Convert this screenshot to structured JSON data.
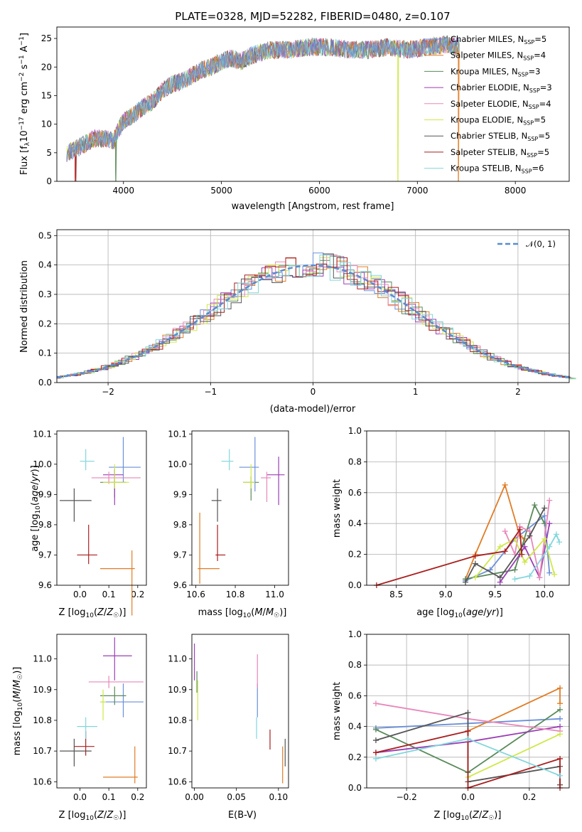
{
  "title": "PLATE=0328, MJD=52282, FIBERID=0480, z=0.107",
  "colors": [
    "#6a8fd8",
    "#e07c26",
    "#5a8a5a",
    "#9b3fb5",
    "#e888bb",
    "#cfe84a",
    "#555555",
    "#a81f1f",
    "#82d6dc"
  ],
  "chart_data": [
    {
      "id": "spectrum",
      "type": "line",
      "title": "PLATE=0328, MJD=52282, FIBERID=0480, z=0.107",
      "xlabel": "wavelength [Angstrom, rest frame]",
      "ylabel": "Flux [f_λ 10⁻¹⁷ erg cm⁻² s⁻¹ A⁻¹]",
      "xlim": [
        3320,
        8550
      ],
      "ylim": [
        0,
        27
      ],
      "xticks": [
        "4000",
        "5000",
        "6000",
        "7000",
        "8000"
      ],
      "yticks": [
        "0",
        "5",
        "10",
        "15",
        "20",
        "25"
      ],
      "legend_position": "right",
      "continuum": {
        "x": [
          3420,
          3500,
          3600,
          3700,
          3800,
          3900,
          3950,
          4000,
          4100,
          4200,
          4300,
          4400,
          4500,
          4600,
          4700,
          4800,
          4900,
          5000,
          5100,
          5200,
          5300,
          5500,
          5700,
          5900,
          6100,
          6300,
          6500,
          6700,
          6900,
          7100,
          7300,
          7420
        ],
        "y": [
          5,
          5.5,
          6.5,
          7.5,
          7.5,
          7,
          9,
          10.5,
          11.5,
          13,
          14,
          16,
          17,
          17.5,
          18.5,
          19.5,
          20,
          21,
          21.5,
          21,
          22,
          23,
          23,
          23.5,
          23.5,
          23,
          23,
          23.5,
          23,
          23.5,
          24,
          23.5
        ]
      },
      "series": [
        {
          "name": "Chabrier MILES, N_SSP=5",
          "label": "Chabrier MILES, N",
          "sub": "SSP",
          "suffix": "=5"
        },
        {
          "name": "Salpeter MILES, N_SSP=4",
          "label": "Salpeter MILES, N",
          "sub": "SSP",
          "suffix": "=4"
        },
        {
          "name": "Kroupa MILES, N_SSP=3",
          "label": "Kroupa MILES, N",
          "sub": "SSP",
          "suffix": "=3"
        },
        {
          "name": "Chabrier ELODIE, N_SSP=3",
          "label": "Chabrier ELODIE, N",
          "sub": "SSP",
          "suffix": "=3"
        },
        {
          "name": "Salpeter ELODIE, N_SSP=4",
          "label": "Salpeter ELODIE, N",
          "sub": "SSP",
          "suffix": "=4"
        },
        {
          "name": "Kroupa ELODIE, N_SSP=5",
          "label": "Kroupa ELODIE, N",
          "sub": "SSP",
          "suffix": "=5"
        },
        {
          "name": "Chabrier STELIB, N_SSP=5",
          "label": "Chabrier STELIB, N",
          "sub": "SSP",
          "suffix": "=5"
        },
        {
          "name": "Salpeter STELIB, N_SSP=5",
          "label": "Salpeter STELIB, N",
          "sub": "SSP",
          "suffix": "=5"
        },
        {
          "name": "Kroupa STELIB, N_SSP=6",
          "label": "Kroupa STELIB, N",
          "sub": "SSP",
          "suffix": "=6"
        }
      ]
    },
    {
      "id": "residuals",
      "type": "line",
      "xlabel": "(data-model)/error",
      "ylabel": "Normed distribution",
      "xlim": [
        -2.5,
        2.5
      ],
      "ylim": [
        0,
        0.52
      ],
      "xticks": [
        "−2",
        "−1",
        "0",
        "1",
        "2"
      ],
      "yticks": [
        "0.0",
        "0.1",
        "0.2",
        "0.3",
        "0.4",
        "0.5"
      ],
      "grid": true,
      "legend": "𝒩(0, 1)",
      "legend_position": "top-right",
      "gaussian": {
        "mean": 0,
        "sigma": 1
      }
    },
    {
      "id": "age_vs_Z",
      "type": "scatter",
      "xlabel": "Z [log₁₀(Z/Z☉)]",
      "ylabel": "age  [log₁₀(age/yr)]",
      "xlim": [
        -0.08,
        0.23
      ],
      "ylim": [
        9.6,
        10.11
      ],
      "xticks": [
        "0.0",
        "0.1",
        "0.2"
      ],
      "yticks": [
        "9.6",
        "9.7",
        "9.8",
        "9.9",
        "10.0",
        "10.1"
      ],
      "points": [
        {
          "x": 0.15,
          "y": 9.99,
          "xerr": [
            0.05,
            0.06
          ],
          "yerr": [
            0.05,
            0.1
          ]
        },
        {
          "x": 0.18,
          "y": 9.655,
          "xerr": [
            0.11,
            0.01
          ],
          "yerr": [
            0.155,
            0.06
          ]
        },
        {
          "x": 0.12,
          "y": 9.94,
          "xerr": [
            0.05,
            0.04
          ],
          "yerr": [
            0.05,
            0.04
          ]
        },
        {
          "x": 0.12,
          "y": 9.965,
          "xerr": [
            0.04,
            0.03
          ],
          "yerr": [
            0.1,
            0.02
          ]
        },
        {
          "x": 0.1,
          "y": 9.955,
          "xerr": [
            0.06,
            0.11
          ],
          "yerr": [
            0.02,
            0.02
          ]
        },
        {
          "x": 0.12,
          "y": 9.94,
          "xerr": [
            0.04,
            0.05
          ],
          "yerr": [
            0.02,
            0.06
          ]
        },
        {
          "x": -0.02,
          "y": 9.88,
          "xerr": [
            0.05,
            0.06
          ],
          "yerr": [
            0.07,
            0.04
          ]
        },
        {
          "x": 0.03,
          "y": 9.7,
          "xerr": [
            0.04,
            0.03
          ],
          "yerr": [
            0.03,
            0.1
          ]
        },
        {
          "x": 0.02,
          "y": 10.01,
          "xerr": [
            0.02,
            0.03
          ],
          "yerr": [
            0.03,
            0.04
          ]
        }
      ]
    },
    {
      "id": "age_vs_mass",
      "type": "scatter",
      "xlabel": "mass [log₁₀(M/M☉)]",
      "ylabel": "",
      "xlim": [
        10.58,
        11.07
      ],
      "ylim": [
        9.6,
        10.11
      ],
      "xticks": [
        "10.6",
        "10.8",
        "11.0"
      ],
      "yticks": [
        "9.6",
        "9.7",
        "9.8",
        "9.9",
        "10.0",
        "10.1"
      ],
      "points": [
        {
          "x": 10.9,
          "y": 9.99,
          "xerr": [
            0.08,
            0.02
          ],
          "yerr": [
            0.08,
            0.1
          ]
        },
        {
          "x": 10.62,
          "y": 9.655,
          "xerr": [
            0.01,
            0.1
          ],
          "yerr": [
            0.05,
            0.185
          ]
        },
        {
          "x": 10.88,
          "y": 9.94,
          "xerr": [
            0.04,
            0.04
          ],
          "yerr": [
            0.06,
            0.02
          ]
        },
        {
          "x": 11.02,
          "y": 9.965,
          "xerr": [
            0.06,
            0.03
          ],
          "yerr": [
            0.1,
            0.06
          ]
        },
        {
          "x": 10.96,
          "y": 9.955,
          "xerr": [
            0.03,
            0.02
          ],
          "yerr": [
            0.08,
            0.02
          ]
        },
        {
          "x": 10.88,
          "y": 9.94,
          "xerr": [
            0.04,
            0.02
          ],
          "yerr": [
            0.02,
            0.06
          ]
        },
        {
          "x": 10.71,
          "y": 9.88,
          "xerr": [
            0.03,
            0.02
          ],
          "yerr": [
            0.07,
            0.04
          ]
        },
        {
          "x": 10.71,
          "y": 9.7,
          "xerr": [
            0.01,
            0.04
          ],
          "yerr": [
            0.02,
            0.1
          ]
        },
        {
          "x": 10.77,
          "y": 10.01,
          "xerr": [
            0.04,
            0.02
          ],
          "yerr": [
            0.03,
            0.04
          ]
        }
      ]
    },
    {
      "id": "massweight_vs_age",
      "type": "line",
      "xlabel": "age  [log₁₀(age/yr)]",
      "ylabel": "mass weight",
      "xlim": [
        8.2,
        10.25
      ],
      "ylim": [
        0,
        1
      ],
      "xticks": [
        "8.5",
        "9.0",
        "9.5",
        "10.0"
      ],
      "yticks": [
        "0.0",
        "0.2",
        "0.4",
        "0.6",
        "0.8",
        "1.0"
      ],
      "grid": true,
      "series": [
        {
          "x": [
            9.2,
            9.45,
            9.7,
            10.0,
            10.05
          ],
          "y": [
            0.03,
            0.1,
            0.3,
            0.45,
            0.08
          ]
        },
        {
          "x": [
            9.2,
            9.3,
            9.6,
            9.75,
            9.8
          ],
          "y": [
            0.04,
            0.2,
            0.65,
            0.32,
            0.3
          ]
        },
        {
          "x": [
            9.2,
            9.7,
            9.9,
            10.0
          ],
          "y": [
            0.04,
            0.1,
            0.52,
            0.4
          ]
        },
        {
          "x": [
            9.55,
            9.75,
            9.8,
            9.95,
            10.05
          ],
          "y": [
            0.02,
            0.2,
            0.25,
            0.05,
            0.4
          ]
        },
        {
          "x": [
            9.6,
            9.7,
            9.75,
            9.85,
            9.95,
            10.05
          ],
          "y": [
            0.35,
            0.2,
            0.38,
            0.35,
            0.05,
            0.55
          ]
        },
        {
          "x": [
            9.3,
            9.55,
            9.7,
            9.8,
            10.0,
            10.1
          ],
          "y": [
            0.05,
            0.25,
            0.3,
            0.15,
            0.3,
            0.07
          ]
        },
        {
          "x": [
            9.2,
            9.3,
            9.55,
            9.85,
            10.0
          ],
          "y": [
            0.02,
            0.14,
            0.05,
            0.32,
            0.5
          ]
        },
        {
          "x": [
            8.3,
            9.3,
            9.6,
            9.75,
            9.77
          ],
          "y": [
            0.0,
            0.19,
            0.22,
            0.36,
            0.2
          ]
        },
        {
          "x": [
            9.7,
            9.85,
            10.05,
            10.12,
            10.15
          ],
          "y": [
            0.04,
            0.06,
            0.25,
            0.33,
            0.28
          ]
        }
      ]
    },
    {
      "id": "mass_vs_Z",
      "type": "scatter",
      "xlabel": "Z [log₁₀(Z/Z☉)]",
      "ylabel": "mass [log₁₀(M/M☉)]",
      "xlim": [
        -0.08,
        0.23
      ],
      "ylim": [
        10.58,
        11.08
      ],
      "xticks": [
        "0.0",
        "0.1",
        "0.2"
      ],
      "yticks": [
        "10.6",
        "10.7",
        "10.8",
        "10.9",
        "11.0"
      ],
      "points": [
        {
          "x": 0.15,
          "y": 10.86,
          "xerr": [
            0.08,
            0.07
          ],
          "yerr": [
            0.05,
            0.06
          ]
        },
        {
          "x": 0.19,
          "y": 10.615,
          "xerr": [
            0.11,
            0.01
          ],
          "yerr": [
            0.02,
            0.1
          ]
        },
        {
          "x": 0.12,
          "y": 10.88,
          "xerr": [
            0.05,
            0.04
          ],
          "yerr": [
            0.03,
            0.03
          ]
        },
        {
          "x": 0.12,
          "y": 11.01,
          "xerr": [
            0.04,
            0.06
          ],
          "yerr": [
            0.08,
            0.06
          ]
        },
        {
          "x": 0.1,
          "y": 10.925,
          "xerr": [
            0.07,
            0.12
          ],
          "yerr": [
            0.02,
            0.02
          ]
        },
        {
          "x": 0.08,
          "y": 10.86,
          "xerr": [
            0.01,
            0.01
          ],
          "yerr": [
            0.06,
            0.04
          ]
        },
        {
          "x": -0.02,
          "y": 10.7,
          "xerr": [
            0.05,
            0.06
          ],
          "yerr": [
            0.05,
            0.04
          ]
        },
        {
          "x": 0.02,
          "y": 10.715,
          "xerr": [
            0.04,
            0.03
          ],
          "yerr": [
            0.03,
            0.05
          ]
        },
        {
          "x": 0.02,
          "y": 10.78,
          "xerr": [
            0.03,
            0.04
          ],
          "yerr": [
            0.04,
            0.03
          ]
        }
      ]
    },
    {
      "id": "mass_vs_EBV",
      "type": "scatter",
      "xlabel": "E(B-V)",
      "ylabel": "",
      "xlim": [
        -0.003,
        0.112
      ],
      "ylim": [
        10.58,
        11.08
      ],
      "xticks": [
        "0.00",
        "0.05",
        "0.10"
      ],
      "yticks": [
        "10.6",
        "10.7",
        "10.8",
        "10.9",
        "11.0"
      ],
      "points": [
        {
          "x": 0.075,
          "y": 10.86,
          "xerr": [
            0,
            0
          ],
          "yerr": [
            0.05,
            0.06
          ]
        },
        {
          "x": 0.105,
          "y": 10.615,
          "xerr": [
            0,
            0
          ],
          "yerr": [
            0.02,
            0.1
          ]
        },
        {
          "x": 0.003,
          "y": 10.92,
          "xerr": [
            0,
            0
          ],
          "yerr": [
            0.03,
            0.04
          ]
        },
        {
          "x": 0.0,
          "y": 11.01,
          "xerr": [
            0,
            0
          ],
          "yerr": [
            0.08,
            0.04
          ]
        },
        {
          "x": 0.075,
          "y": 10.925,
          "xerr": [
            0,
            0
          ],
          "yerr": [
            0.02,
            0.09
          ]
        },
        {
          "x": 0.004,
          "y": 10.86,
          "xerr": [
            0,
            0
          ],
          "yerr": [
            0.06,
            0.07
          ]
        },
        {
          "x": 0.108,
          "y": 10.7,
          "xerr": [
            0,
            0
          ],
          "yerr": [
            0.05,
            0.04
          ]
        },
        {
          "x": 0.09,
          "y": 10.735,
          "xerr": [
            0,
            0
          ],
          "yerr": [
            0.03,
            0.035
          ]
        },
        {
          "x": 0.074,
          "y": 10.78,
          "xerr": [
            0,
            0
          ],
          "yerr": [
            0.04,
            0.03
          ]
        }
      ]
    },
    {
      "id": "massweight_vs_Z",
      "type": "line",
      "xlabel": "Z [log₁₀(Z/Z☉)]",
      "ylabel": "mass weight",
      "xlim": [
        -0.33,
        0.33
      ],
      "ylim": [
        0,
        1
      ],
      "xticks": [
        "−0.2",
        "0.0",
        "0.2"
      ],
      "yticks": [
        "0.0",
        "0.2",
        "0.4",
        "0.6",
        "0.8",
        "1.0"
      ],
      "grid": true,
      "series": [
        {
          "x": [
            -0.3,
            0.0,
            0.3
          ],
          "y": [
            0.39,
            0.42,
            0.45
          ]
        },
        {
          "x": [
            0.0,
            0.3,
            0.3
          ],
          "y": [
            0.37,
            0.65,
            0.55
          ]
        },
        {
          "x": [
            -0.3,
            0.0,
            0.3
          ],
          "y": [
            0.38,
            0.1,
            0.51
          ]
        },
        {
          "x": [
            -0.3,
            0.0,
            0.3
          ],
          "y": [
            0.23,
            0.3,
            0.4
          ]
        },
        {
          "x": [
            -0.3,
            0.0,
            0.3
          ],
          "y": [
            0.55,
            0.45,
            0.37
          ]
        },
        {
          "x": [
            0.0,
            0.3
          ],
          "y": [
            0.07,
            0.35
          ]
        },
        {
          "x": [
            -0.3,
            0.0,
            0.0,
            0.3,
            0.3
          ],
          "y": [
            0.31,
            0.49,
            0.04,
            0.14,
            0.02
          ]
        },
        {
          "x": [
            -0.3,
            0.0,
            0.0,
            0.3,
            0.3
          ],
          "y": [
            0.23,
            0.37,
            0.0,
            0.19,
            0.0
          ]
        },
        {
          "x": [
            -0.3,
            0.0,
            0.3
          ],
          "y": [
            0.19,
            0.32,
            0.08
          ]
        }
      ]
    }
  ]
}
